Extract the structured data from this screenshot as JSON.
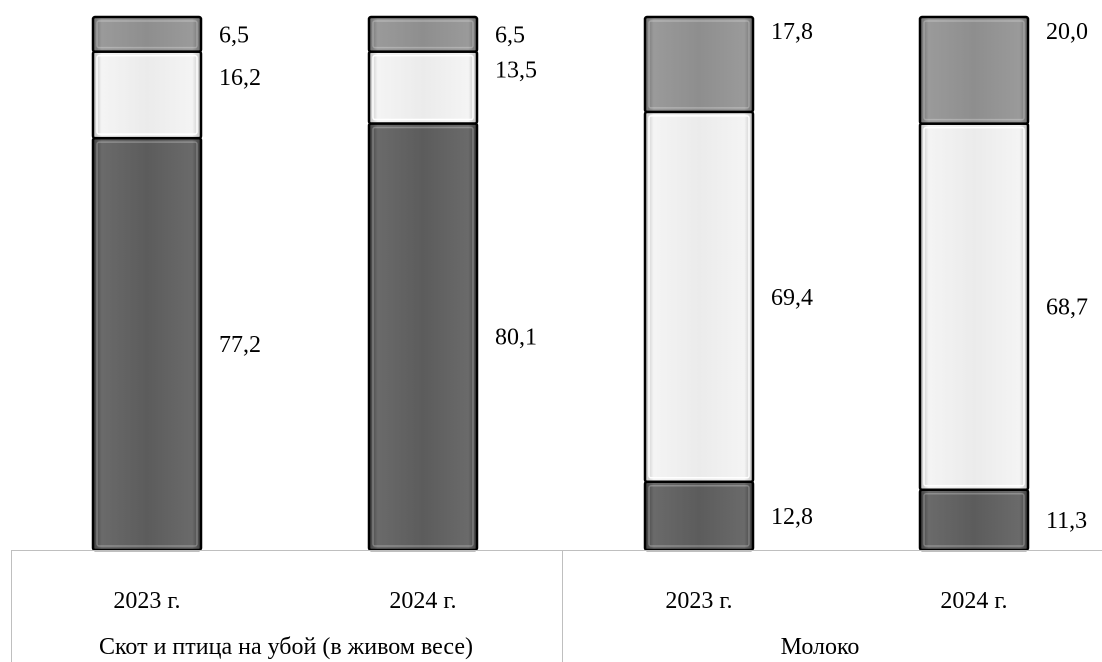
{
  "chart_data": {
    "type": "bar",
    "stacked": true,
    "normalized": true,
    "groups": [
      {
        "name": "Скот и птица на убой (в живом весе)",
        "bars": [
          {
            "category": "2023 г.",
            "segments": [
              77.2,
              16.2,
              6.5
            ]
          },
          {
            "category": "2024 г.",
            "segments": [
              80.1,
              13.5,
              6.5
            ]
          }
        ]
      },
      {
        "name": "Молоко",
        "bars": [
          {
            "category": "2023 г.",
            "segments": [
              12.8,
              69.4,
              17.8
            ]
          },
          {
            "category": "2024 г.",
            "segments": [
              11.3,
              68.7,
              20.0
            ]
          }
        ]
      }
    ],
    "value_labels": [
      [
        "77,2",
        "16,2",
        "6,5"
      ],
      [
        "80,1",
        "13,5",
        "6,5"
      ],
      [
        "12,8",
        "69,4",
        "17,8"
      ],
      [
        "11,3",
        "68,7",
        "20,0"
      ]
    ],
    "segment_colors": [
      "#5a5a5a",
      "#ececec",
      "#8c8c8c"
    ],
    "legend": "none",
    "grid": false
  }
}
